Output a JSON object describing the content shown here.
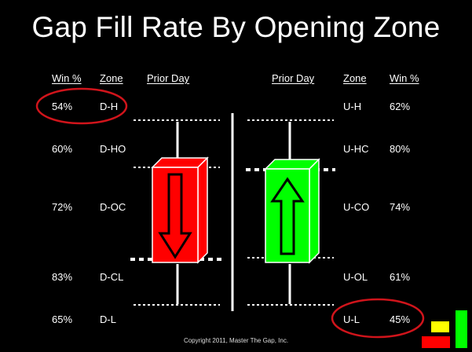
{
  "title": "Gap Fill Rate By Opening Zone",
  "left_headers": {
    "win": "Win %",
    "zone": "Zone",
    "prior": "Prior Day"
  },
  "right_headers": {
    "prior": "Prior Day",
    "zone": "Zone",
    "win": "Win %"
  },
  "left_rows": [
    {
      "win": "54%",
      "zone": "D-H"
    },
    {
      "win": "60%",
      "zone": "D-HO"
    },
    {
      "win": "72%",
      "zone": "D-OC"
    },
    {
      "win": "83%",
      "zone": "D-CL"
    },
    {
      "win": "65%",
      "zone": "D-L"
    }
  ],
  "right_rows": [
    {
      "zone": "U-H",
      "win": "62%"
    },
    {
      "zone": "U-HC",
      "win": "80%"
    },
    {
      "zone": "U-CO",
      "win": "74%"
    },
    {
      "zone": "U-OL",
      "win": "61%"
    },
    {
      "zone": "U-L",
      "win": "45%"
    }
  ],
  "highlighted_rows": [
    "D-H",
    "U-L"
  ],
  "copyright": "Copyright 2011, Master The Gap, Inc.",
  "colors": {
    "background": "#000000",
    "text": "#ffffff",
    "down_candle": "#ff0000",
    "up_candle": "#00ff00",
    "highlight_ellipse": "#d0141b",
    "logo_yellow": "#ffff00",
    "logo_red": "#ff0000",
    "logo_green": "#00ff00"
  },
  "icons": [
    "down-arrow-icon",
    "up-arrow-icon",
    "logo-bars-icon"
  ]
}
